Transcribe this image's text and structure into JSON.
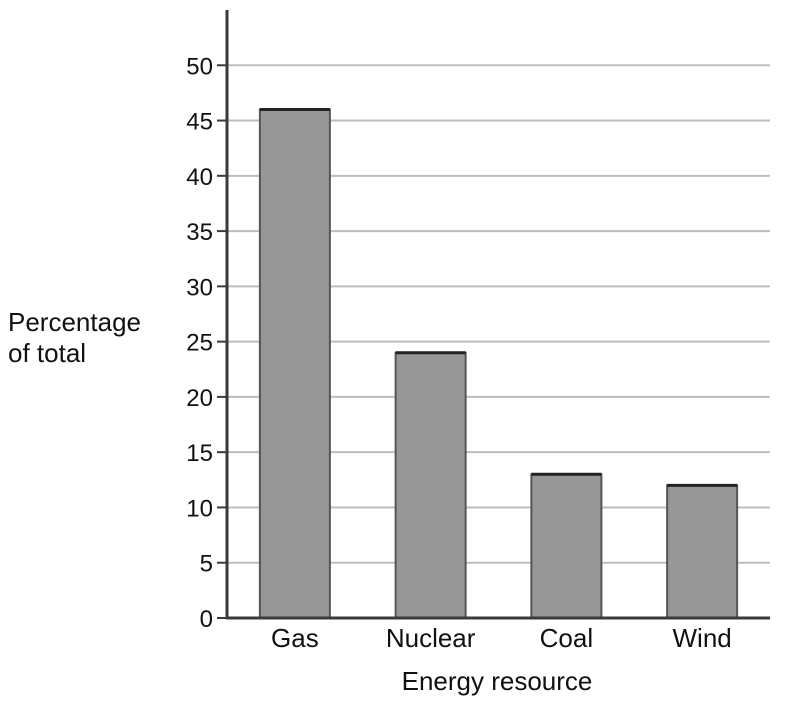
{
  "chart_data": {
    "type": "bar",
    "categories": [
      "Gas",
      "Nuclear",
      "Coal",
      "Wind"
    ],
    "values": [
      46,
      24,
      13,
      12
    ],
    "xlabel": "Energy resource",
    "ylabel_lines": [
      "Percentage",
      "of total"
    ],
    "ylim": [
      0,
      55
    ],
    "yticks": [
      0,
      5,
      10,
      15,
      20,
      25,
      30,
      35,
      40,
      45,
      50
    ],
    "grid": true,
    "legend": "none",
    "colors": {
      "bar_fill": "#979797",
      "bar_edge": "#555555",
      "grid": "#bdbdbd",
      "axis": "#3a3a3a"
    }
  }
}
